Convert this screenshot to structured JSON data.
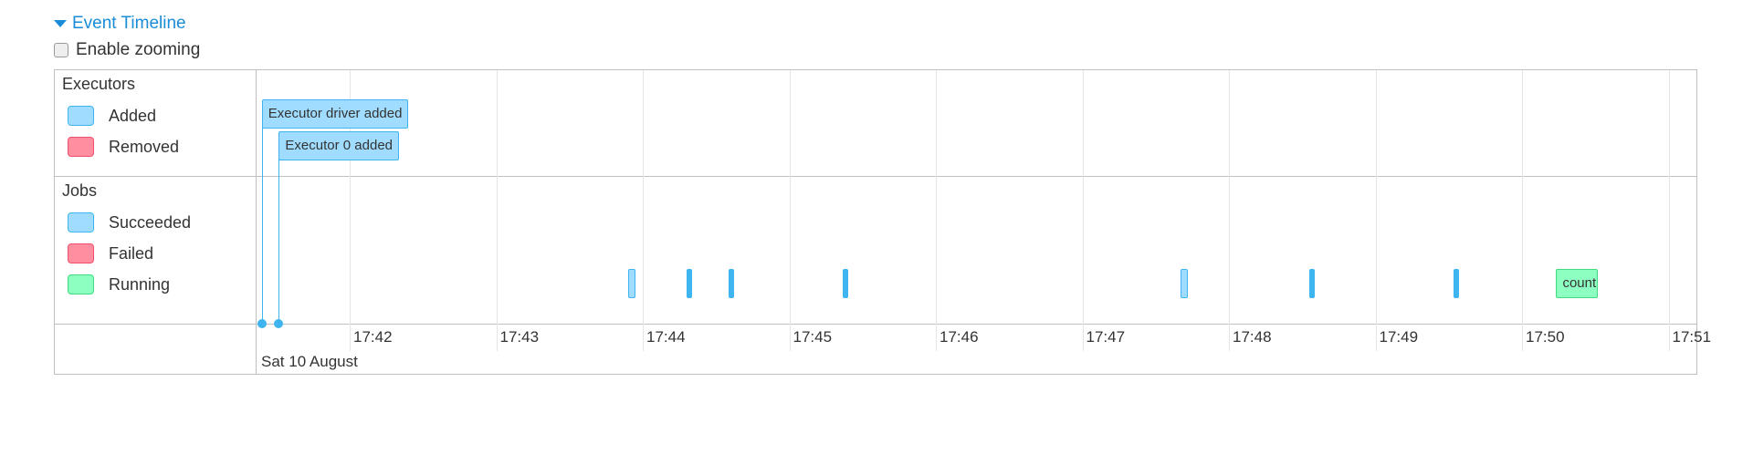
{
  "header": {
    "title": "Event Timeline",
    "expanded": true
  },
  "zoom": {
    "label": "Enable zooming",
    "checked": false
  },
  "groups": {
    "executors": {
      "title": "Executors",
      "legend": [
        {
          "label": "Added",
          "color": "#a0dcff",
          "border": "#3eb5f1"
        },
        {
          "label": "Removed",
          "color": "#ff8ea0",
          "border": "#f0506e"
        }
      ]
    },
    "jobs": {
      "title": "Jobs",
      "legend": [
        {
          "label": "Succeeded",
          "color": "#a0dcff",
          "border": "#3eb5f1"
        },
        {
          "label": "Failed",
          "color": "#ff8ea0",
          "border": "#f0506e"
        },
        {
          "label": "Running",
          "color": "#8dffc0",
          "border": "#3fdd7e"
        }
      ]
    }
  },
  "axis": {
    "ticks": [
      "17:42",
      "17:43",
      "17:44",
      "17:45",
      "17:46",
      "17:47",
      "17:48",
      "17:49",
      "17:50",
      "17:51"
    ],
    "date_label": "Sat 10 August"
  },
  "executor_events": [
    {
      "label": "Executor driver added",
      "time": "17:41:24",
      "status": "added"
    },
    {
      "label": "Executor 0 added",
      "time": "17:41:31",
      "status": "added"
    }
  ],
  "jobs": [
    {
      "start": "17:43:54",
      "end": "17:43:56",
      "status": "succeeded"
    },
    {
      "start": "17:44:18",
      "end": "17:44:18",
      "status": "succeeded"
    },
    {
      "start": "17:44:35",
      "end": "17:44:35",
      "status": "succeeded"
    },
    {
      "start": "17:45:22",
      "end": "17:45:22",
      "status": "succeeded"
    },
    {
      "start": "17:47:40",
      "end": "17:47:42",
      "status": "succeeded"
    },
    {
      "start": "17:48:33",
      "end": "17:48:33",
      "status": "succeeded"
    },
    {
      "start": "17:49:32",
      "end": "17:49:32",
      "status": "succeeded"
    },
    {
      "start": "17:50:14",
      "end": "17:50:31",
      "status": "running",
      "label": "count"
    }
  ]
}
